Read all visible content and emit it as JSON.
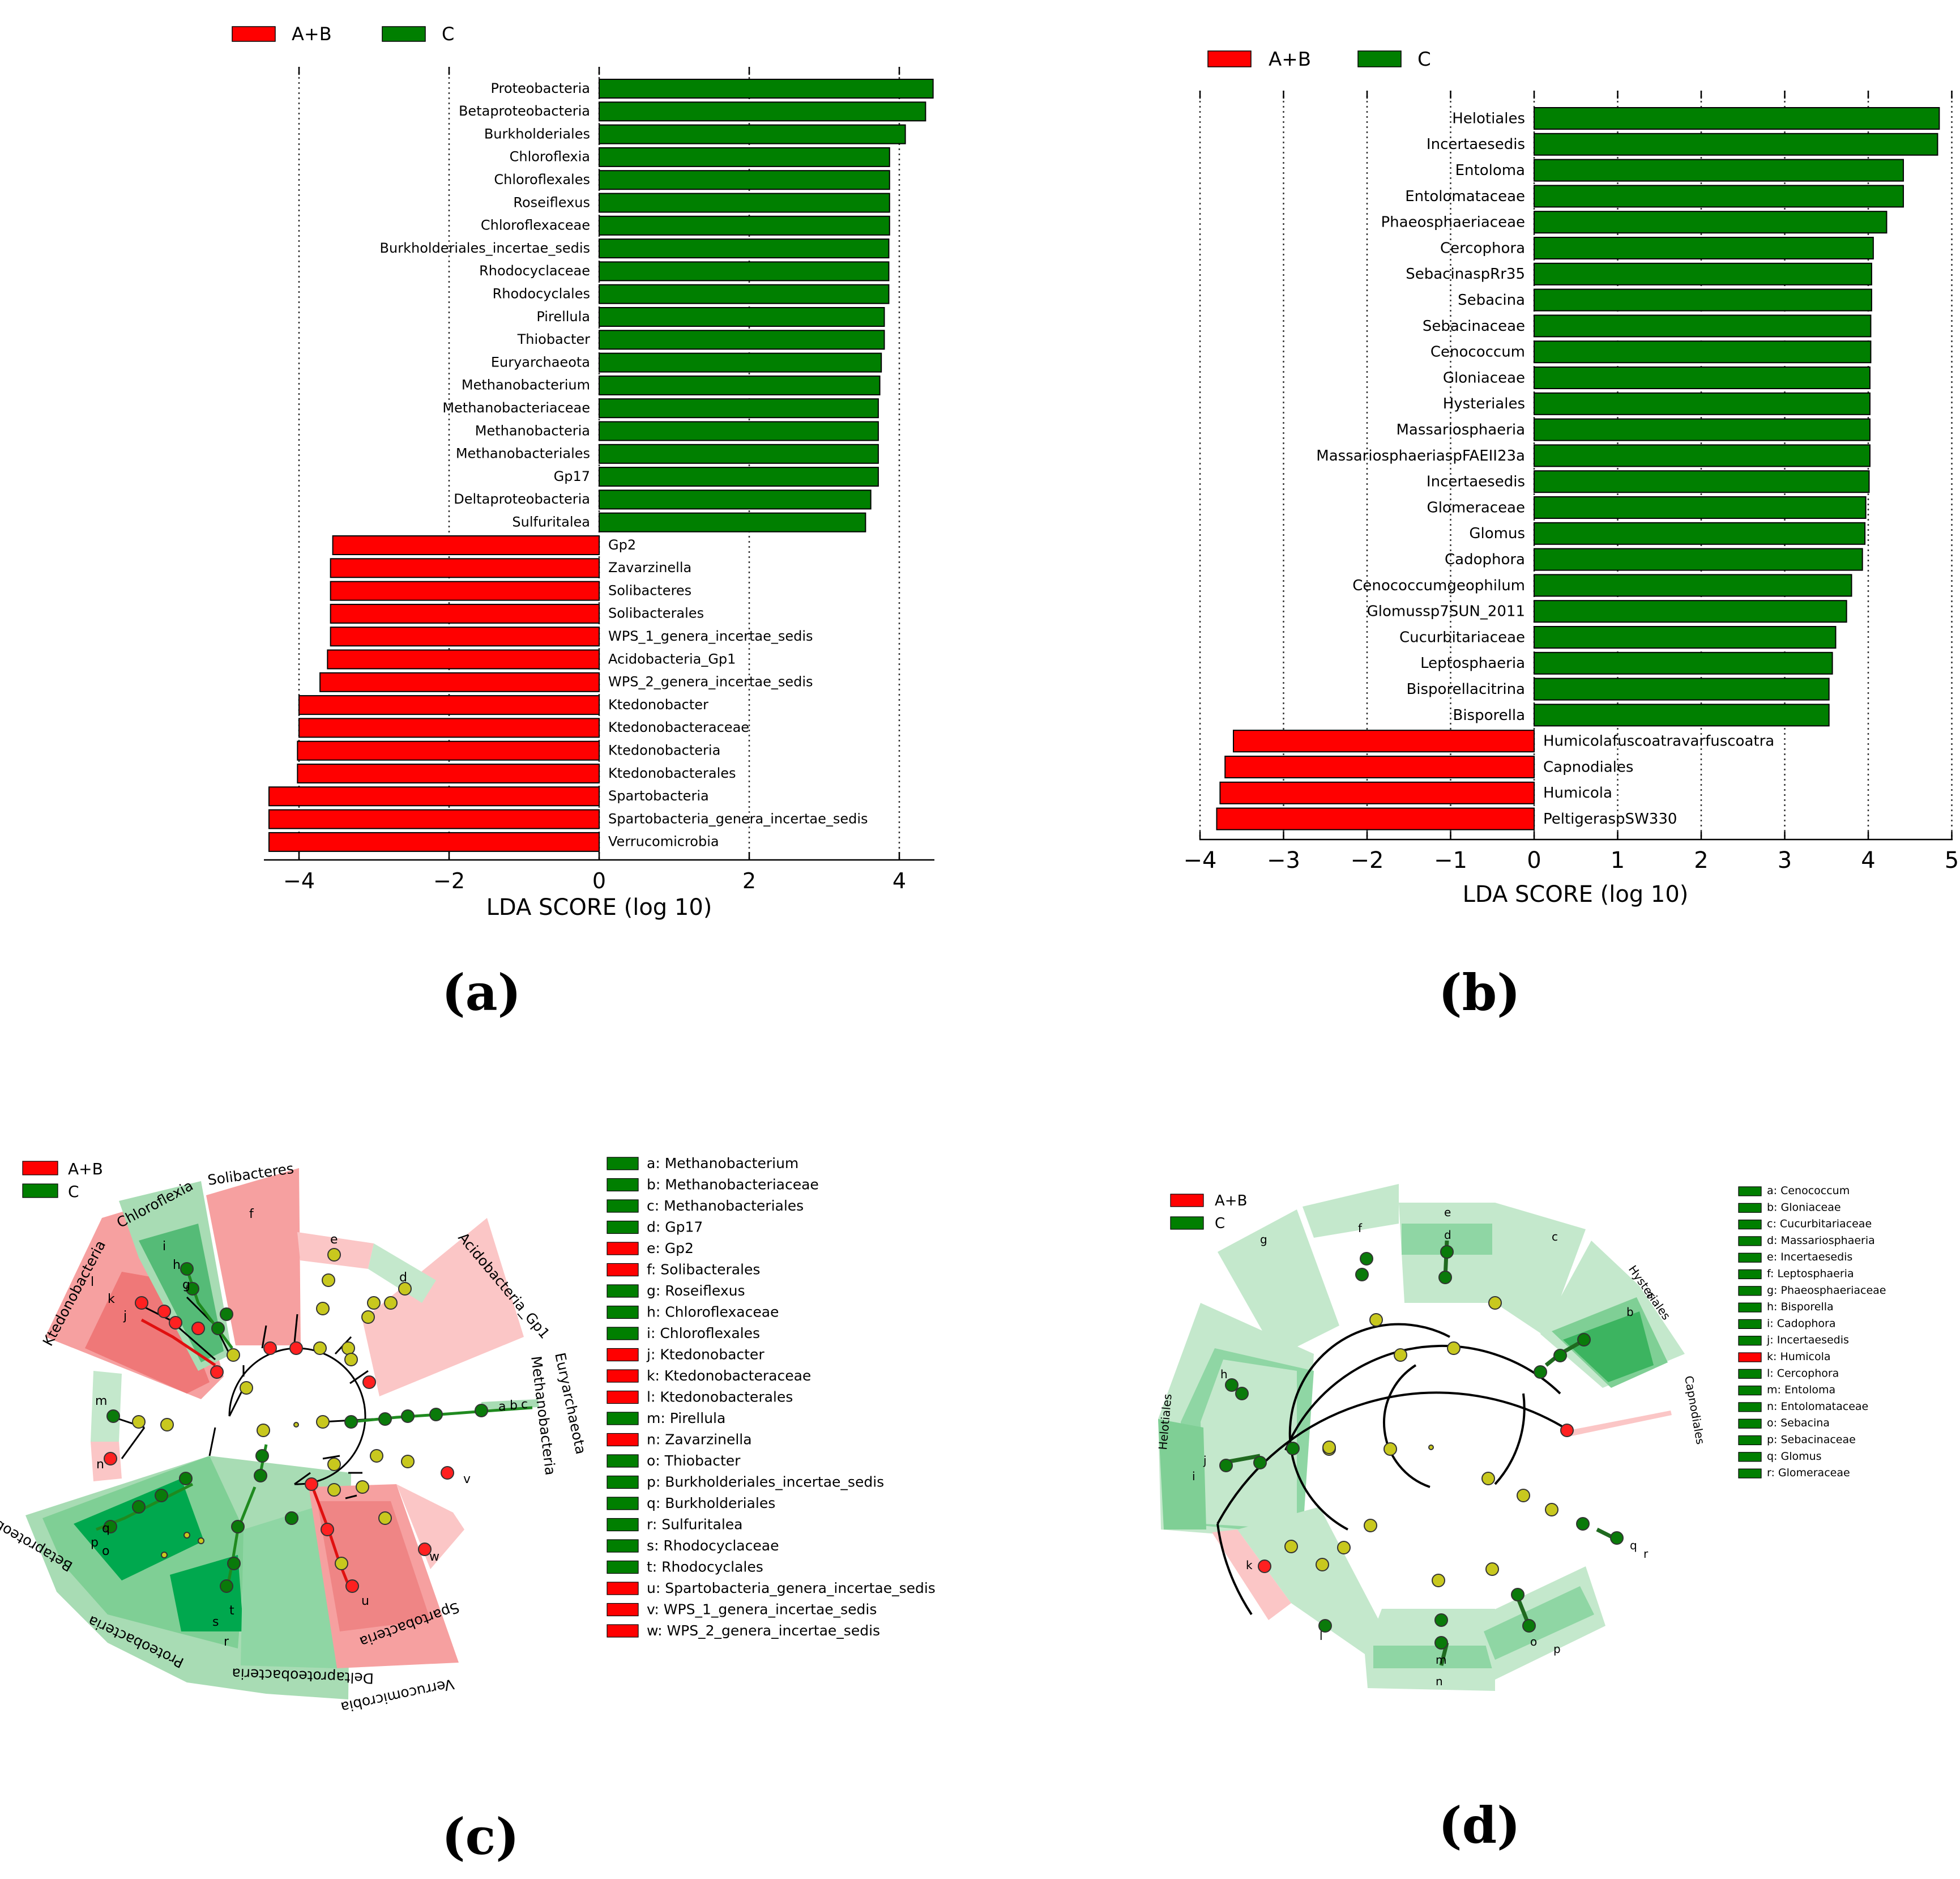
{
  "colors": {
    "group_ab": "#ff0000",
    "group_c": "#007f00",
    "node_neutral": "#c8c81e",
    "shade_ab": "#f9a3a3",
    "shade_c": "#a8dcb4",
    "shade_c_dark": "#00a84e"
  },
  "panel_labels": {
    "a": "(a)",
    "b": "(b)",
    "c": "(c)",
    "d": "(d)"
  },
  "chart_data": [
    {
      "id": "a",
      "type": "bar",
      "orientation": "horizontal",
      "xlabel": "LDA SCORE (log 10)",
      "xlim": [
        -5,
        5
      ],
      "xticks": [
        -4,
        -2,
        0,
        2,
        4
      ],
      "xtick_labels": [
        "−4",
        "−2",
        "0",
        "2",
        "4"
      ],
      "legend": [
        {
          "name": "A+B",
          "color": "#ff0000"
        },
        {
          "name": "C",
          "color": "#007f00"
        }
      ],
      "legend_position": "top-left",
      "grid": "vertical dotted",
      "categories": [
        "Proteobacteria",
        "Betaproteobacteria",
        "Burkholderiales",
        "Chloroflexia",
        "Chloroflexales",
        "Roseiflexus",
        "Chloroflexaceae",
        "Burkholderiales_incertae_sedis",
        "Rhodocyclaceae",
        "Rhodocyclales",
        "Pirellula",
        "Thiobacter",
        "Euryarchaeota",
        "Methanobacterium",
        "Methanobacteriaceae",
        "Methanobacteria",
        "Methanobacteriales",
        "Gp17",
        "Deltaproteobacteria",
        "Sulfuritalea",
        "Gp2",
        "Zavarzinella",
        "Solibacteres",
        "Solibacterales",
        "WPS_1_genera_incertae_sedis",
        "Acidobacteria_Gp1",
        "WPS_2_genera_incertae_sedis",
        "Ktedonobacter",
        "Ktedonobacteraceae",
        "Ktedonobacteria",
        "Ktedonobacterales",
        "Spartobacteria",
        "Spartobacteria_genera_incertae_sedis",
        "Verrucomicrobia"
      ],
      "values": [
        4.45,
        4.35,
        4.08,
        3.87,
        3.87,
        3.87,
        3.87,
        3.86,
        3.86,
        3.86,
        3.8,
        3.8,
        3.76,
        3.74,
        3.72,
        3.72,
        3.72,
        3.72,
        3.62,
        3.55,
        -3.55,
        -3.58,
        -3.58,
        -3.58,
        -3.58,
        -3.62,
        -3.72,
        -4.0,
        -4.0,
        -4.02,
        -4.02,
        -4.4,
        -4.4,
        -4.4
      ],
      "groups": [
        "C",
        "C",
        "C",
        "C",
        "C",
        "C",
        "C",
        "C",
        "C",
        "C",
        "C",
        "C",
        "C",
        "C",
        "C",
        "C",
        "C",
        "C",
        "C",
        "C",
        "A+B",
        "A+B",
        "A+B",
        "A+B",
        "A+B",
        "A+B",
        "A+B",
        "A+B",
        "A+B",
        "A+B",
        "A+B",
        "A+B",
        "A+B",
        "A+B"
      ]
    },
    {
      "id": "b",
      "type": "bar",
      "orientation": "horizontal",
      "xlabel": "LDA SCORE (log 10)",
      "xlim": [
        -4,
        5
      ],
      "xticks": [
        -4,
        -3,
        -2,
        -1,
        0,
        1,
        2,
        3,
        4,
        5
      ],
      "xtick_labels": [
        "−4",
        "−3",
        "−2",
        "−1",
        "0",
        "1",
        "2",
        "3",
        "4",
        "5"
      ],
      "legend": [
        {
          "name": "A+B",
          "color": "#ff0000"
        },
        {
          "name": "C",
          "color": "#007f00"
        }
      ],
      "legend_position": "top-left",
      "grid": "vertical dotted",
      "categories": [
        "Helotiales",
        "Incertaesedis",
        "Entoloma",
        "Entolomataceae",
        "Phaeosphaeriaceae",
        "Cercophora",
        "SebacinaspRr35",
        "Sebacina",
        "Sebacinaceae",
        "Cenococcum",
        "Gloniaceae",
        "Hysteriales",
        "Massariosphaeria",
        "MassariosphaeriaspFAEII23a",
        "Incertaesedis",
        "Glomeraceae",
        "Glomus",
        "Cadophora",
        "Cenococcumgeophilum",
        "Glomussp7SUN_2011",
        "Cucurbitariaceae",
        "Leptosphaeria",
        "Bisporellacitrina",
        "Bisporella",
        "Humicolafuscoatravarfuscoatra",
        "Capnodiales",
        "Humicola",
        "PeltigeraspSW330"
      ],
      "values": [
        4.85,
        4.83,
        4.42,
        4.42,
        4.22,
        4.06,
        4.04,
        4.04,
        4.03,
        4.03,
        4.02,
        4.02,
        4.02,
        4.02,
        4.01,
        3.97,
        3.96,
        3.93,
        3.8,
        3.74,
        3.61,
        3.57,
        3.53,
        3.53,
        -3.6,
        -3.7,
        -3.76,
        -3.8
      ],
      "groups": [
        "C",
        "C",
        "C",
        "C",
        "C",
        "C",
        "C",
        "C",
        "C",
        "C",
        "C",
        "C",
        "C",
        "C",
        "C",
        "C",
        "C",
        "C",
        "C",
        "C",
        "C",
        "C",
        "C",
        "C",
        "A+B",
        "A+B",
        "A+B",
        "A+B"
      ]
    },
    {
      "id": "c",
      "type": "cladogram",
      "legend_groups": [
        {
          "name": "A+B",
          "color": "#ff0000"
        },
        {
          "name": "C",
          "color": "#007f00"
        }
      ],
      "taxa": [
        {
          "key": "a",
          "label": "a: Methanobacterium",
          "group": "C"
        },
        {
          "key": "b",
          "label": "b: Methanobacteriaceae",
          "group": "C"
        },
        {
          "key": "c",
          "label": "c: Methanobacteriales",
          "group": "C"
        },
        {
          "key": "d",
          "label": "d: Gp17",
          "group": "C"
        },
        {
          "key": "e",
          "label": "e: Gp2",
          "group": "A+B"
        },
        {
          "key": "f",
          "label": "f: Solibacterales",
          "group": "A+B"
        },
        {
          "key": "g",
          "label": "g: Roseiflexus",
          "group": "C"
        },
        {
          "key": "h",
          "label": "h: Chloroflexaceae",
          "group": "C"
        },
        {
          "key": "i",
          "label": "i: Chloroflexales",
          "group": "C"
        },
        {
          "key": "j",
          "label": "j: Ktedonobacter",
          "group": "A+B"
        },
        {
          "key": "k",
          "label": "k: Ktedonobacteraceae",
          "group": "A+B"
        },
        {
          "key": "l",
          "label": "l: Ktedonobacterales",
          "group": "A+B"
        },
        {
          "key": "m",
          "label": "m: Pirellula",
          "group": "C"
        },
        {
          "key": "n",
          "label": "n: Zavarzinella",
          "group": "A+B"
        },
        {
          "key": "o",
          "label": "o: Thiobacter",
          "group": "C"
        },
        {
          "key": "p",
          "label": "p: Burkholderiales_incertae_sedis",
          "group": "C"
        },
        {
          "key": "q",
          "label": "q: Burkholderiales",
          "group": "C"
        },
        {
          "key": "r",
          "label": "r: Sulfuritalea",
          "group": "C"
        },
        {
          "key": "s",
          "label": "s: Rhodocyclaceae",
          "group": "C"
        },
        {
          "key": "t",
          "label": "t: Rhodocyclales",
          "group": "C"
        },
        {
          "key": "u",
          "label": "u: Spartobacteria_genera_incertae_sedis",
          "group": "A+B"
        },
        {
          "key": "v",
          "label": "v: WPS_1_genera_incertae_sedis",
          "group": "A+B"
        },
        {
          "key": "w",
          "label": "w: WPS_2_genera_incertae_sedis",
          "group": "A+B"
        }
      ],
      "clades": [
        {
          "label": "Solibacteres",
          "group": "A+B",
          "letters": [
            "f"
          ]
        },
        {
          "label": "Chloroflexia",
          "group": "C",
          "letters": [
            "i",
            "h",
            "g"
          ]
        },
        {
          "label": "Ktedonobacteria",
          "group": "A+B",
          "letters": [
            "l",
            "k",
            "j"
          ]
        },
        {
          "label": "Acidobacteria_Gp1",
          "group": "A+B",
          "letters": []
        },
        {
          "label": "Euryarchaeota",
          "group": "C",
          "letters": []
        },
        {
          "label": "Methanobacteria",
          "group": "C",
          "letters": [
            "a",
            "b",
            "c"
          ]
        },
        {
          "label": "Betaproteobacteria",
          "group": "C",
          "letters": [
            "q",
            "p",
            "o",
            "t",
            "s",
            "r"
          ]
        },
        {
          "label": "Proteobacteria",
          "group": "C",
          "letters": []
        },
        {
          "label": "Deltaproteobacteria",
          "group": "C",
          "letters": []
        },
        {
          "label": "Spartobacteria",
          "group": "A+B",
          "letters": [
            "u"
          ]
        },
        {
          "label": "Verrucomicrobia",
          "group": "A+B",
          "letters": []
        }
      ],
      "other_letters": [
        "m",
        "n",
        "e",
        "d",
        "v",
        "w"
      ]
    },
    {
      "id": "d",
      "type": "cladogram",
      "legend_groups": [
        {
          "name": "A+B",
          "color": "#ff0000"
        },
        {
          "name": "C",
          "color": "#007f00"
        }
      ],
      "taxa": [
        {
          "key": "a",
          "label": "a: Cenococcum",
          "group": "C"
        },
        {
          "key": "b",
          "label": "b: Gloniaceae",
          "group": "C"
        },
        {
          "key": "c",
          "label": "c: Cucurbitariaceae",
          "group": "C"
        },
        {
          "key": "d",
          "label": "d: Massariosphaeria",
          "group": "C"
        },
        {
          "key": "e",
          "label": "e: Incertaesedis",
          "group": "C"
        },
        {
          "key": "f",
          "label": "f: Leptosphaeria",
          "group": "C"
        },
        {
          "key": "g",
          "label": "g: Phaeosphaeriaceae",
          "group": "C"
        },
        {
          "key": "h",
          "label": "h: Bisporella",
          "group": "C"
        },
        {
          "key": "i",
          "label": "i: Cadophora",
          "group": "C"
        },
        {
          "key": "j",
          "label": "j: Incertaesedis",
          "group": "C"
        },
        {
          "key": "k",
          "label": "k: Humicola",
          "group": "A+B"
        },
        {
          "key": "l",
          "label": "l: Cercophora",
          "group": "C"
        },
        {
          "key": "m",
          "label": "m: Entoloma",
          "group": "C"
        },
        {
          "key": "n",
          "label": "n: Entolomataceae",
          "group": "C"
        },
        {
          "key": "o",
          "label": "o: Sebacina",
          "group": "C"
        },
        {
          "key": "p",
          "label": "p: Sebacinaceae",
          "group": "C"
        },
        {
          "key": "q",
          "label": "q: Glomus",
          "group": "C"
        },
        {
          "key": "r",
          "label": "r: Glomeraceae",
          "group": "C"
        }
      ],
      "clades": [
        {
          "label": "Hysteriales",
          "group": "C",
          "letters": [
            "a",
            "b"
          ]
        },
        {
          "label": "Helotiales",
          "group": "C",
          "letters": [
            "h",
            "i",
            "j"
          ]
        },
        {
          "label": "Capnodiales",
          "group": "A+B",
          "letters": []
        }
      ],
      "other_letters": [
        "c",
        "d",
        "e",
        "f",
        "g",
        "k",
        "l",
        "m",
        "n",
        "o",
        "p"
      ]
    }
  ]
}
